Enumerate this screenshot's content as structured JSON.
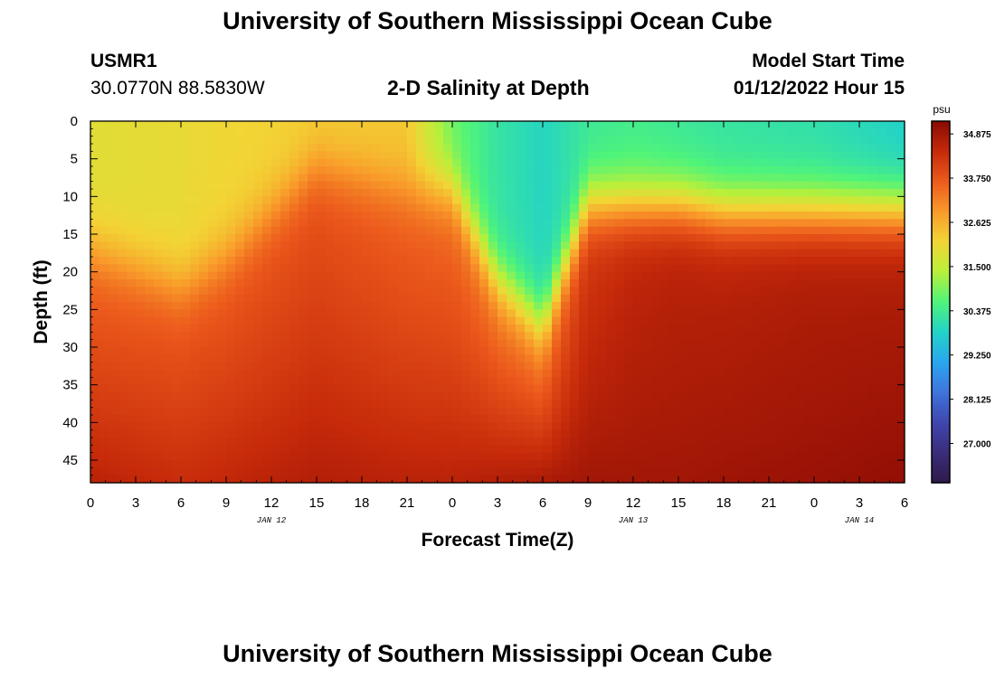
{
  "page": {
    "title": "University of Southern Mississippi Ocean Cube",
    "title_repeat": "University of Southern Mississippi Ocean Cube"
  },
  "header": {
    "station_id": "USMR1",
    "station_coords": "30.0770N  88.5830W",
    "plot_title": "2-D Salinity at Depth",
    "model_start_label": "Model Start Time",
    "model_start_value": "01/12/2022 Hour 15"
  },
  "chart_data": {
    "type": "heatmap",
    "title": "2-D Salinity at Depth",
    "xlabel": "Forecast Time(Z)",
    "ylabel": "Depth (ft)",
    "x_ticks": [
      "0",
      "3",
      "6",
      "9",
      "12",
      "15",
      "18",
      "21",
      "0",
      "3",
      "6",
      "9",
      "12",
      "15",
      "18",
      "21",
      "0",
      "3",
      "6"
    ],
    "x_tick_hours": [
      0,
      3,
      6,
      9,
      12,
      15,
      18,
      21,
      24,
      27,
      30,
      33,
      36,
      39,
      42,
      45,
      48,
      51,
      54
    ],
    "x_range_hours": [
      0,
      54
    ],
    "date_labels": [
      {
        "text": "JAN 12",
        "hour": 12
      },
      {
        "text": "JAN 13",
        "hour": 36
      },
      {
        "text": "JAN 14",
        "hour": 51
      }
    ],
    "y_ticks": [
      0,
      5,
      10,
      15,
      20,
      25,
      30,
      35,
      40,
      45
    ],
    "ylim": [
      0,
      48
    ],
    "y_inverted": true,
    "colorbar": {
      "unit": "psu",
      "min": 26.0,
      "max": 35.2,
      "ticks": [
        "34.875",
        "33.750",
        "32.625",
        "31.500",
        "30.375",
        "29.250",
        "28.125",
        "27.000"
      ],
      "colors": [
        "#2e1a4a",
        "#3b2d7a",
        "#4046b0",
        "#3f74dc",
        "#2aa6f0",
        "#22d2c8",
        "#4ff47a",
        "#b8f03a",
        "#f2d535",
        "#f99a2a",
        "#ec5a1c",
        "#c62a0a",
        "#8a0a04"
      ]
    },
    "field": {
      "hours": [
        0,
        6,
        9,
        15,
        21,
        24,
        27,
        30,
        33,
        36,
        39,
        42,
        48,
        54
      ],
      "halocline_depth": [
        17,
        22,
        18,
        6,
        9,
        9,
        21,
        27,
        11,
        11,
        11,
        12,
        12,
        12
      ],
      "surface_salinity": [
        31.9,
        32.0,
        32.1,
        32.2,
        32.3,
        30.8,
        30.2,
        29.9,
        30.3,
        30.4,
        30.3,
        30.2,
        30.1,
        29.8
      ],
      "mid_salinity": [
        33.6,
        33.7,
        33.7,
        33.8,
        33.6,
        33.5,
        33.3,
        33.2,
        34.2,
        34.5,
        34.6,
        34.6,
        34.7,
        34.7
      ],
      "bottom_salinity": [
        34.6,
        34.4,
        34.5,
        34.7,
        34.6,
        34.6,
        34.7,
        34.8,
        34.9,
        34.9,
        34.9,
        34.95,
        35.0,
        35.1
      ]
    }
  }
}
